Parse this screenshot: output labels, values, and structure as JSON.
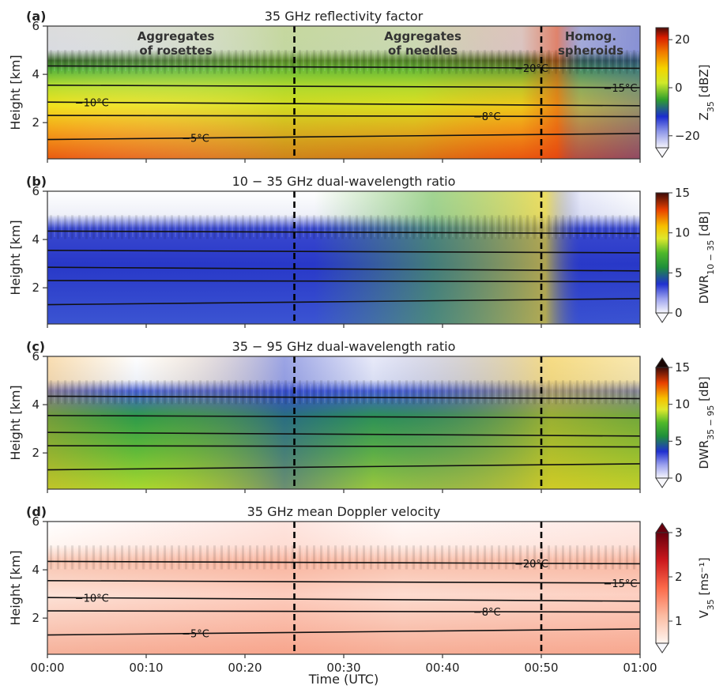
{
  "chart_data": {
    "type": "heatmap",
    "xlabel": "Time (UTC)",
    "x_tick_labels": [
      "00:00",
      "00:10",
      "00:20",
      "00:30",
      "00:40",
      "00:50",
      "01:00"
    ],
    "x_range_minutes": [
      0,
      60
    ],
    "regime_boundaries_minutes": [
      25,
      50
    ],
    "panels": [
      {
        "letter": "(a)",
        "title": "35 GHz reflectivity factor",
        "ylabel": "Height [km]",
        "ylim": [
          0.5,
          6
        ],
        "y_ticks": [
          2,
          4,
          6
        ],
        "colorbar": {
          "label_main": "Z",
          "label_sub": "35",
          "label_unit": " [dBZ]",
          "range": [
            -25,
            25
          ],
          "ticks": [
            20,
            0,
            -20
          ],
          "tick_labels": [
            "20",
            "0",
            "−20"
          ],
          "colormap": "rainbow",
          "extend_min": true,
          "extend_max": false
        },
        "regime_labels": [
          {
            "line1": "Aggregates",
            "line2": "of rosettes",
            "center_min": 13
          },
          {
            "line1": "Aggregates",
            "line2": "of needles",
            "center_min": 38
          },
          {
            "line1": "Homog.",
            "line2": "spheroids",
            "center_min": 55
          }
        ],
        "isotherms": [
          {
            "label": "−5°C",
            "h_start": 1.3,
            "h_end": 1.55,
            "label_min": 15
          },
          {
            "label": "−8°C",
            "h_start": 2.3,
            "h_end": 2.25,
            "label_min": 44.5
          },
          {
            "label": "−10°C",
            "h_start": 2.85,
            "h_end": 2.7,
            "label_min": 4.5
          },
          {
            "label": "−15°C",
            "h_start": 3.55,
            "h_end": 3.45,
            "label_min": 58
          },
          {
            "label": "−20°C",
            "h_start": 4.35,
            "h_end": 4.25,
            "label_min": 49
          }
        ]
      },
      {
        "letter": "(b)",
        "title": "10 − 35 GHz dual-wavelength ratio",
        "ylabel": "Height [km]",
        "ylim": [
          0.5,
          6
        ],
        "y_ticks": [
          2,
          4,
          6
        ],
        "colorbar": {
          "label_main": "DWR",
          "label_sub": "10 − 35",
          "label_unit": " [dB]",
          "range": [
            0,
            15
          ],
          "ticks": [
            15,
            10,
            5,
            0
          ],
          "tick_labels": [
            "15",
            "10",
            "5",
            "0"
          ],
          "colormap": "dwr",
          "extend_min": true,
          "extend_max": false
        },
        "regime_labels": [],
        "isotherms": [
          {
            "label": "",
            "h_start": 1.3,
            "h_end": 1.55
          },
          {
            "label": "",
            "h_start": 2.3,
            "h_end": 2.25
          },
          {
            "label": "",
            "h_start": 2.85,
            "h_end": 2.7
          },
          {
            "label": "",
            "h_start": 3.55,
            "h_end": 3.45
          },
          {
            "label": "",
            "h_start": 4.35,
            "h_end": 4.25
          }
        ]
      },
      {
        "letter": "(c)",
        "title": "35 − 95 GHz dual-wavelength ratio",
        "ylabel": "Height [km]",
        "ylim": [
          0.5,
          6
        ],
        "y_ticks": [
          2,
          4,
          6
        ],
        "colorbar": {
          "label_main": "DWR",
          "label_sub": "35 − 95",
          "label_unit": " [dB]",
          "range": [
            0,
            15
          ],
          "ticks": [
            15,
            10,
            5,
            0
          ],
          "tick_labels": [
            "15",
            "10",
            "5",
            "0"
          ],
          "colormap": "dwr",
          "extend_min": true,
          "extend_max": true
        },
        "regime_labels": [],
        "isotherms": [
          {
            "label": "",
            "h_start": 1.3,
            "h_end": 1.55
          },
          {
            "label": "",
            "h_start": 2.3,
            "h_end": 2.25
          },
          {
            "label": "",
            "h_start": 2.85,
            "h_end": 2.7
          },
          {
            "label": "",
            "h_start": 3.55,
            "h_end": 3.45
          },
          {
            "label": "",
            "h_start": 4.35,
            "h_end": 4.25
          }
        ]
      },
      {
        "letter": "(d)",
        "title": "35 GHz mean Doppler velocity",
        "ylabel": "Height [km]",
        "ylim": [
          0.5,
          6
        ],
        "y_ticks": [
          2,
          4,
          6
        ],
        "colorbar": {
          "label_main": "V",
          "label_sub": "35",
          "label_unit": " [ms⁻¹]",
          "range": [
            0.5,
            3
          ],
          "ticks": [
            3,
            2,
            1
          ],
          "tick_labels": [
            "3",
            "2",
            "1"
          ],
          "colormap": "reds",
          "extend_min": true,
          "extend_max": true
        },
        "regime_labels": [],
        "isotherms": [
          {
            "label": "−5°C",
            "h_start": 1.3,
            "h_end": 1.55,
            "label_min": 15
          },
          {
            "label": "−8°C",
            "h_start": 2.3,
            "h_end": 2.25,
            "label_min": 44.5
          },
          {
            "label": "−10°C",
            "h_start": 2.85,
            "h_end": 2.7,
            "label_min": 4.5
          },
          {
            "label": "−15°C",
            "h_start": 3.55,
            "h_end": 3.45,
            "label_min": 58
          },
          {
            "label": "−20°C",
            "h_start": 4.35,
            "h_end": 4.25,
            "label_min": 49
          }
        ]
      }
    ]
  }
}
